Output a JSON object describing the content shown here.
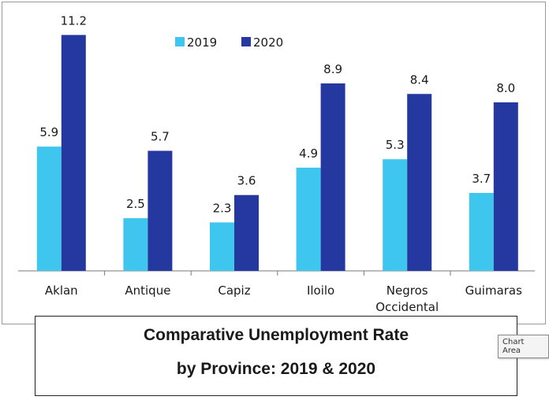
{
  "chart_data": {
    "type": "bar",
    "categories": [
      "Aklan",
      "Antique",
      "Capiz",
      "Iloilo",
      "Negros Occidental",
      "Guimaras"
    ],
    "category_lines": [
      [
        "Aklan"
      ],
      [
        "Antique"
      ],
      [
        "Capiz"
      ],
      [
        "Iloilo"
      ],
      [
        "Negros",
        "Occidental"
      ],
      [
        "Guimaras"
      ]
    ],
    "series": [
      {
        "name": "2019",
        "values": [
          5.9,
          2.5,
          2.3,
          4.9,
          5.3,
          3.7
        ],
        "color": "#3ec6ee"
      },
      {
        "name": "2020",
        "values": [
          11.2,
          5.7,
          3.6,
          8.9,
          8.4,
          8.0
        ],
        "color": "#2438a0"
      }
    ],
    "data_labels": [
      [
        "5.9",
        "2.5",
        "2.3",
        "4.9",
        "5.3",
        "3.7"
      ],
      [
        "11.2",
        "5.7",
        "3.6",
        "8.9",
        "8.4",
        "8.0"
      ]
    ],
    "title": [
      "Comparative Unemployment Rate",
      "by Province: 2019 & 2020"
    ],
    "ylim": [
      0,
      12
    ],
    "grid": false,
    "legend_position": "top-center"
  },
  "tooltip_text": "Chart Area"
}
